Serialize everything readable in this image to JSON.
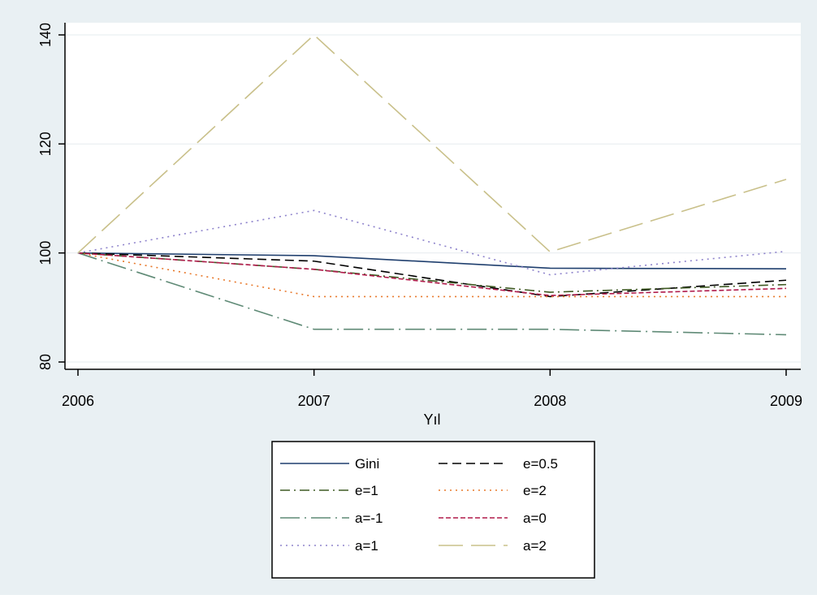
{
  "chart_data": {
    "type": "line",
    "title": "",
    "xlabel": "Yıl",
    "ylabel": "",
    "x": [
      2006,
      2007,
      2008,
      2009
    ],
    "x_ticks": [
      "2006",
      "2007",
      "2008",
      "2009"
    ],
    "y_ticks": [
      "80",
      "100",
      "120",
      "140"
    ],
    "xlim": [
      2006,
      2009
    ],
    "ylim": [
      80,
      140
    ],
    "grid": "horizontal",
    "legend_position": "bottom",
    "series": [
      {
        "name": "Gini",
        "values": [
          100,
          99.5,
          97.2,
          97.1
        ],
        "color": "#1f3f6e",
        "dash": "solid"
      },
      {
        "name": "e=0.5",
        "values": [
          100,
          98.5,
          92.0,
          95.0
        ],
        "color": "#000000",
        "dash": "dash"
      },
      {
        "name": "e=1",
        "values": [
          100,
          97.0,
          92.8,
          94.2
        ],
        "color": "#3f5a23",
        "dash": "dashdot"
      },
      {
        "name": "e=2",
        "values": [
          100,
          92.0,
          92.0,
          92.0
        ],
        "color": "#e8782a",
        "dash": "dot"
      },
      {
        "name": "a=-1",
        "values": [
          100,
          86.0,
          86.0,
          85.0
        ],
        "color": "#5f8a76",
        "dash": "longdashdot"
      },
      {
        "name": "a=0",
        "values": [
          100,
          97.0,
          92.2,
          93.5
        ],
        "color": "#b01a4a",
        "dash": "shortdash"
      },
      {
        "name": "a=1",
        "values": [
          100,
          107.8,
          96.0,
          100.3
        ],
        "color": "#8e83cc",
        "dash": "dot"
      },
      {
        "name": "a=2",
        "values": [
          100,
          140.0,
          100.2,
          113.5
        ],
        "color": "#c9c08a",
        "dash": "longdash"
      }
    ]
  }
}
